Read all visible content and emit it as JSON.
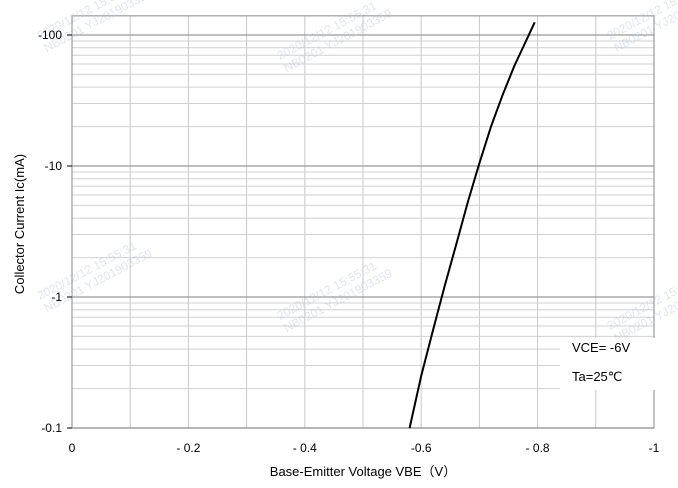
{
  "chart_data": {
    "type": "line",
    "xlabel": "Base-Emitter Voltage  VBE（V）",
    "ylabel": "Collector Current   Ic(mA)",
    "x_ticks": [
      "0",
      "- 0.2",
      "- 0.4",
      "-0.6",
      "- 0.8",
      "-1"
    ],
    "x_tick_values": [
      0,
      -0.2,
      -0.4,
      -0.6,
      -0.8,
      -1.0
    ],
    "y_ticks": [
      "-0.1",
      "-1",
      "-10",
      "-100"
    ],
    "y_tick_values": [
      -0.1,
      -1,
      -10,
      -100
    ],
    "xlim": [
      0,
      -1.0
    ],
    "ylim": [
      -0.1,
      -140
    ],
    "y_scale": "log",
    "grid": true,
    "series": [
      {
        "x": [
          -0.58,
          -0.6,
          -0.62,
          -0.64,
          -0.66,
          -0.68,
          -0.7,
          -0.72,
          -0.74,
          -0.76,
          -0.78,
          -0.795
        ],
        "y": [
          -0.1,
          -0.25,
          -0.55,
          -1.2,
          -2.5,
          -5.3,
          -10.5,
          -20,
          -35,
          -58,
          -90,
          -125
        ]
      }
    ],
    "annotations": [
      "VCE= -6V",
      "Ta=25℃"
    ]
  },
  "watermarks": [
    "2020/12/12 15:55:31",
    "NB0201 YJ201903359"
  ]
}
